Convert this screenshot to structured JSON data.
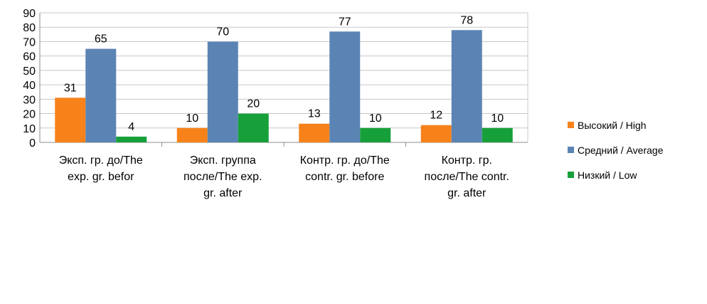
{
  "chart_data": {
    "type": "bar",
    "categories": [
      [
        "Эксп. гр. до/The",
        "exp. gr. befor"
      ],
      [
        "Эксп. группа",
        "после/The exp.",
        "gr. after"
      ],
      [
        "Контр. гр. до/The",
        "contr. gr. before"
      ],
      [
        "Контр. гр.",
        "после/The contr.",
        "gr. after"
      ]
    ],
    "series": [
      {
        "name": "Высокий / High",
        "color": "#f7821a",
        "values": [
          31,
          10,
          13,
          12
        ]
      },
      {
        "name": "Средний / Average",
        "color": "#5b84b4",
        "values": [
          65,
          70,
          77,
          78
        ]
      },
      {
        "name": "Низкий / Low",
        "color": "#17a03a",
        "values": [
          4,
          20,
          10,
          10
        ]
      }
    ],
    "title": "",
    "xlabel": "",
    "ylabel": "",
    "ylim": [
      0,
      90
    ],
    "yticks": [
      0,
      10,
      20,
      30,
      40,
      50,
      60,
      70,
      80,
      90
    ],
    "grid": true,
    "legend": "right"
  }
}
